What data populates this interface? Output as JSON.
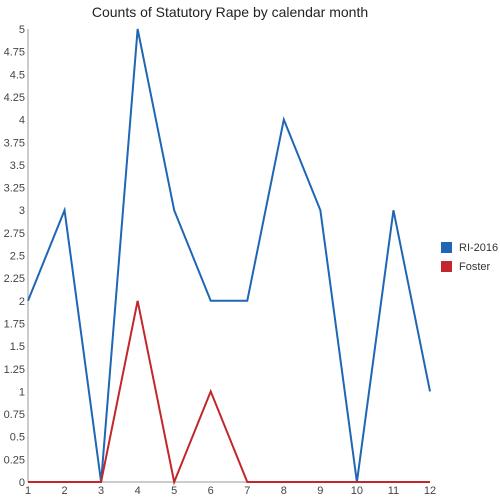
{
  "chart_data": {
    "type": "line",
    "title": "Counts of Statutory Rape by calendar month",
    "xlabel": "",
    "ylabel": "",
    "x": [
      1,
      2,
      3,
      4,
      5,
      6,
      7,
      8,
      9,
      10,
      11,
      12
    ],
    "ylim": [
      0,
      5
    ],
    "yticks": [
      "0",
      "0.25",
      "0.5",
      "0.75",
      "1",
      "1.25",
      "1.5",
      "1.75",
      "2",
      "2.25",
      "2.5",
      "2.75",
      "3",
      "3.25",
      "3.5",
      "3.75",
      "4",
      "4.25",
      "4.5",
      "4.75",
      "5"
    ],
    "xticks": [
      "1",
      "2",
      "3",
      "4",
      "5",
      "6",
      "7",
      "8",
      "9",
      "10",
      "11",
      "12"
    ],
    "grid": false,
    "legend_position": "right",
    "series": [
      {
        "name": "RI-2016",
        "color": "#1f66b5",
        "values": [
          2,
          3,
          0,
          5,
          3,
          2,
          2,
          4,
          3,
          0,
          3,
          1
        ]
      },
      {
        "name": "Foster",
        "color": "#c1272d",
        "values": [
          0,
          0,
          0,
          2,
          0,
          1,
          0,
          0,
          0,
          0,
          0,
          0
        ]
      }
    ]
  }
}
